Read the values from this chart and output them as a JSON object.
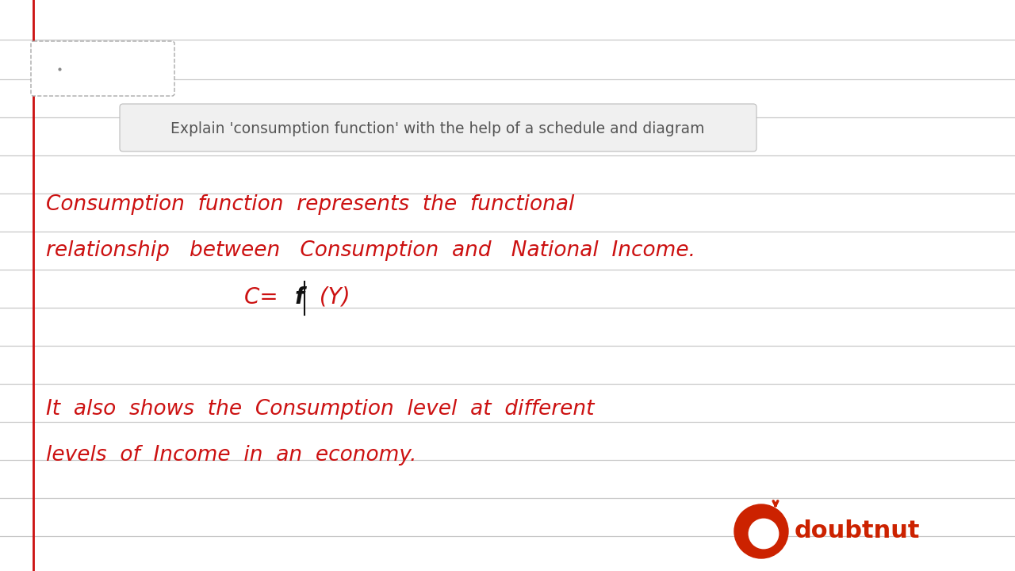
{
  "background_color": "#ffffff",
  "line_color": "#c8c8c8",
  "title_text": "Explain 'consumption function' with the help of a schedule and diagram",
  "title_color": "#555555",
  "title_fontsize": 13.5,
  "title_box_facecolor": "#f0f0f0",
  "title_box_edgecolor": "#bbbbbb",
  "red_color": "#cc1111",
  "black_color": "#111111",
  "line1": "Consumption  function  represents  the  functional",
  "line2": "relationship   between   Consumption  and   National  Income.",
  "formula_left": "C= ",
  "formula_f": "f",
  "formula_right": " (Y)",
  "bottom_line1": "It  also  shows  the  Consumption  level  at  different",
  "bottom_line2": "levels  of  Income  in  an  economy.",
  "handwriting_fontsize": 19,
  "formula_fontsize": 20,
  "logo_color": "#cc2200",
  "logo_text": "doubtnut",
  "logo_fontsize": 22
}
